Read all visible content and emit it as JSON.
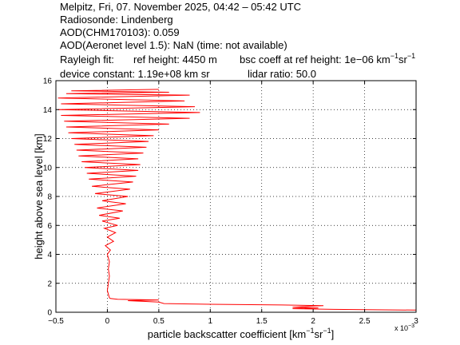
{
  "header": {
    "line1": "Melpitz, Fri, 07. November 2025, 04:42 – 05:42 UTC",
    "line2": "Radiosonde: Lindenberg",
    "line3": "AOD(CHM170103): 0.059",
    "line4": "AOD(Aeronet level 1.5): NaN   (time: not available)",
    "rayleigh_label": "Rayleigh fit:",
    "ref_height": "ref height: 4450 m",
    "bsc_coeff_prefix": "bsc coeff at ref height: 1e−06 km",
    "sup1": "−1",
    "sr": "sr",
    "sup2": "−1",
    "device_constant": "device constant: 1.19e+08 km sr",
    "lidar_ratio": "lidar ratio: 50.0"
  },
  "colors": {
    "trace": "#ff0000",
    "axes": "#000000",
    "grid": "#000000",
    "background": "#ffffff"
  },
  "chart_data": {
    "type": "line",
    "title": "",
    "xlabel_prefix": "particle backscatter coefficient [km",
    "xlabel_sup1": "−1",
    "xlabel_mid": "sr",
    "xlabel_sup2": "−1",
    "xlabel_suffix": "]",
    "ylabel": "height above sea level [km]",
    "x_multiplier_base": "x 10",
    "x_multiplier_exp": "−3",
    "xlim": [
      -0.5,
      3
    ],
    "ylim": [
      0,
      16
    ],
    "x_ticks": [
      "−0.5",
      "0",
      "0.5",
      "1",
      "1.5",
      "2",
      "2.5",
      "3"
    ],
    "x_tick_values": [
      -0.5,
      0,
      0.5,
      1,
      1.5,
      2,
      2.5,
      3
    ],
    "y_ticks": [
      "0",
      "2",
      "4",
      "6",
      "8",
      "10",
      "12",
      "14",
      "16"
    ],
    "y_tick_values": [
      0,
      2,
      4,
      6,
      8,
      10,
      12,
      14,
      16
    ],
    "grid": true,
    "series": [
      {
        "color": "#ff0000",
        "points": [
          [
            3.0,
            0.15
          ],
          [
            2.2,
            0.2
          ],
          [
            1.8,
            0.25
          ],
          [
            2.05,
            0.3
          ],
          [
            1.8,
            0.35
          ],
          [
            2.1,
            0.45
          ],
          [
            1.7,
            0.5
          ],
          [
            1.0,
            0.55
          ],
          [
            0.55,
            0.6
          ],
          [
            0.5,
            0.7
          ],
          [
            0.2,
            0.8
          ],
          [
            0.5,
            0.85
          ],
          [
            0.1,
            0.9
          ],
          [
            0.03,
            0.95
          ],
          [
            0.02,
            1.0
          ],
          [
            0.0,
            1.5
          ],
          [
            0.01,
            2.0
          ],
          [
            0.02,
            2.5
          ],
          [
            0.01,
            3.0
          ],
          [
            0.02,
            3.5
          ],
          [
            0.0,
            4.0
          ],
          [
            0.03,
            4.3
          ],
          [
            -0.02,
            4.6
          ],
          [
            0.06,
            4.9
          ],
          [
            0.0,
            5.2
          ],
          [
            0.08,
            5.5
          ],
          [
            -0.03,
            5.8
          ],
          [
            0.1,
            6.0
          ],
          [
            -0.05,
            6.3
          ],
          [
            0.12,
            6.5
          ],
          [
            -0.08,
            6.7
          ],
          [
            0.15,
            7.0
          ],
          [
            -0.1,
            7.2
          ],
          [
            0.18,
            7.5
          ],
          [
            -0.05,
            7.7
          ],
          [
            0.2,
            8.0
          ],
          [
            -0.12,
            8.2
          ],
          [
            0.22,
            8.5
          ],
          [
            -0.15,
            8.7
          ],
          [
            0.25,
            9.0
          ],
          [
            -0.18,
            9.2
          ],
          [
            0.28,
            9.4
          ],
          [
            -0.2,
            9.6
          ],
          [
            0.3,
            9.8
          ],
          [
            -0.22,
            10.0
          ],
          [
            0.32,
            10.2
          ],
          [
            -0.25,
            10.4
          ],
          [
            0.3,
            10.6
          ],
          [
            -0.28,
            10.8
          ],
          [
            0.35,
            11.0
          ],
          [
            -0.3,
            11.2
          ],
          [
            0.38,
            11.4
          ],
          [
            -0.32,
            11.6
          ],
          [
            0.4,
            11.8
          ],
          [
            -0.35,
            12.0
          ],
          [
            0.45,
            12.2
          ],
          [
            -0.38,
            12.4
          ],
          [
            0.5,
            12.6
          ],
          [
            -0.4,
            12.8
          ],
          [
            0.6,
            13.0
          ],
          [
            -0.42,
            13.2
          ],
          [
            0.8,
            13.4
          ],
          [
            -0.45,
            13.6
          ],
          [
            0.9,
            13.8
          ],
          [
            -0.48,
            14.0
          ],
          [
            0.85,
            14.2
          ],
          [
            -0.45,
            14.4
          ],
          [
            0.75,
            14.6
          ],
          [
            -0.48,
            14.8
          ],
          [
            0.8,
            15.0
          ],
          [
            -0.4,
            15.1
          ],
          [
            0.6,
            15.2
          ],
          [
            -0.35,
            15.3
          ],
          [
            0.5,
            15.4
          ]
        ]
      }
    ]
  }
}
